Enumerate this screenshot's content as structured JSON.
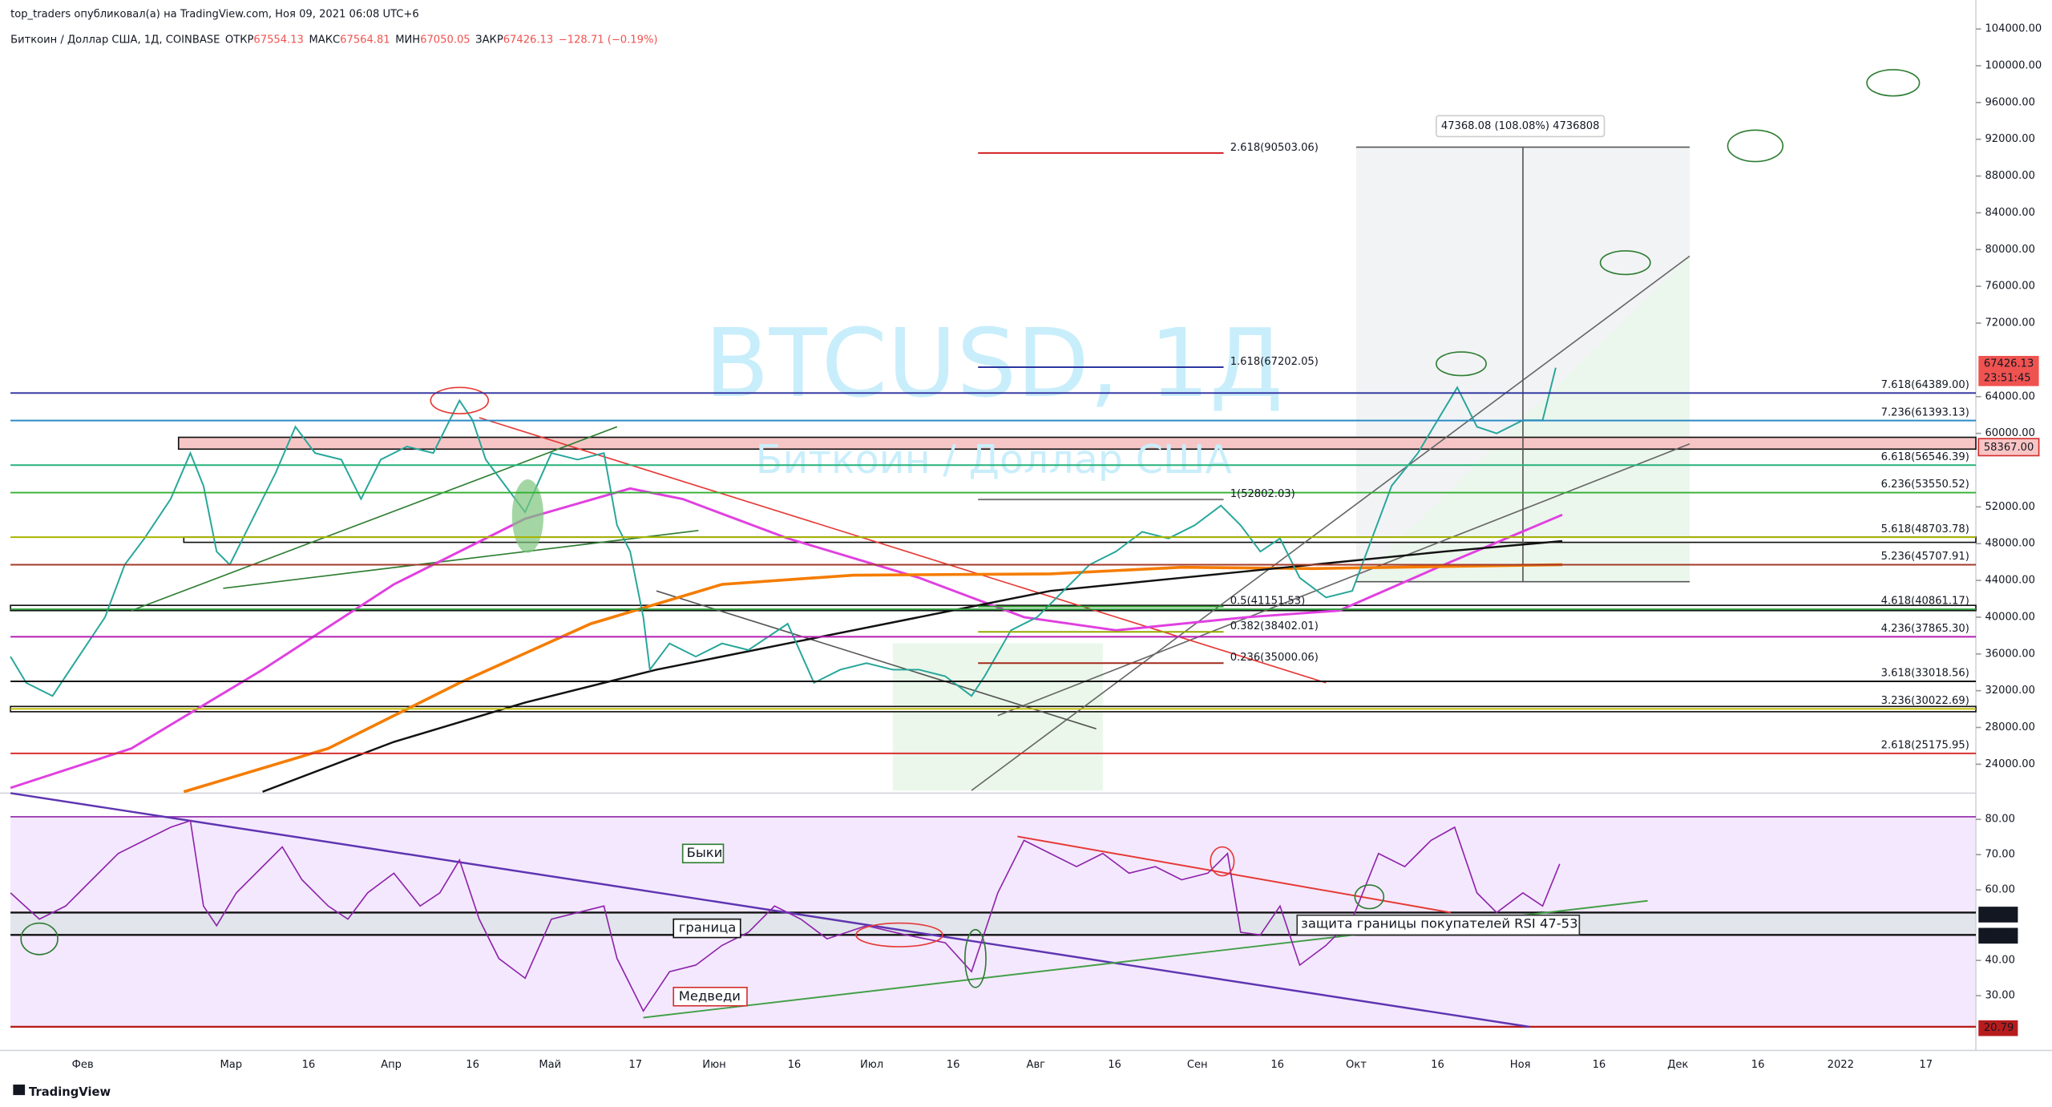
{
  "header": {
    "publisher": "top_traders опубликовал(а) на TradingView.com, Ноя 09, 2021 06:08 UTC+6",
    "symbol": "Биткоин / Доллар США, 1Д, COINBASE",
    "ohlc": [
      {
        "label": "ОТКР",
        "value": "67554.13"
      },
      {
        "label": "МАКС",
        "value": "67564.81"
      },
      {
        "label": "МИН",
        "value": "67050.05"
      },
      {
        "label": "ЗАКР",
        "value": "67426.13"
      }
    ],
    "change": "−128.71 (−0.19%)"
  },
  "watermark": {
    "ticker": "BTCUSD, 1Д",
    "name": "Биткоин / Доллар США"
  },
  "price_axis": {
    "ticks": [
      {
        "value": 104000,
        "label": "104000.00"
      },
      {
        "value": 100000,
        "label": "100000.00"
      },
      {
        "value": 96000,
        "label": "96000.00"
      },
      {
        "value": 92000,
        "label": "92000.00"
      },
      {
        "value": 88000,
        "label": "88000.00"
      },
      {
        "value": 84000,
        "label": "84000.00"
      },
      {
        "value": 80000,
        "label": "80000.00"
      },
      {
        "value": 76000,
        "label": "76000.00"
      },
      {
        "value": 72000,
        "label": "72000.00"
      },
      {
        "value": 64000,
        "label": "64000.00"
      },
      {
        "value": 60000,
        "label": "60000.00"
      },
      {
        "value": 52000,
        "label": "52000.00"
      },
      {
        "value": 48000,
        "label": "48000.00"
      },
      {
        "value": 44000,
        "label": "44000.00"
      },
      {
        "value": 40000,
        "label": "40000.00"
      },
      {
        "value": 36000,
        "label": "36000.00"
      },
      {
        "value": 32000,
        "label": "32000.00"
      },
      {
        "value": 28000,
        "label": "28000.00"
      },
      {
        "value": 24000,
        "label": "24000.00"
      }
    ]
  },
  "last_price": {
    "price": "67426.13",
    "countdown": "23:51:45"
  },
  "level_tag": "58367.00",
  "fib_right": [
    {
      "label": "7.618(64389.00)",
      "price": 64389,
      "color": "#2a2f9e"
    },
    {
      "label": "7.236(61393.13)",
      "price": 61393.13,
      "color": "#2b8bc4"
    },
    {
      "label": "6.618(56546.39)",
      "price": 56546.39,
      "color": "#26b27a"
    },
    {
      "label": "6.236(53550.52)",
      "price": 53550.52,
      "color": "#33b033"
    },
    {
      "label": "5.618(48703.78)",
      "price": 48703.78,
      "color": "#a8b400"
    },
    {
      "label": "5.236(45707.91)",
      "price": 45707.91,
      "color": "#a33a2a"
    },
    {
      "label": "4.618(40861.17)",
      "price": 40861.17,
      "color": "#2e9e3e"
    },
    {
      "label": "4.236(37865.30)",
      "price": 37865.3,
      "color": "#b51fb5"
    },
    {
      "label": "3.618(33018.56)",
      "price": 33018.56,
      "color": "#111111"
    },
    {
      "label": "3.236(30022.69)",
      "price": 30022.69,
      "color": "#c2bd00"
    },
    {
      "label": "2.618(25175.95)",
      "price": 25175.95,
      "color": "#d93030"
    }
  ],
  "fib_inner": [
    {
      "label": "2.618(90503.06)",
      "price": 90503.06,
      "color": "#d32020"
    },
    {
      "label": "1.618(67202.05)",
      "price": 67202.05,
      "color": "#1f2a9a"
    },
    {
      "label": "1(52802.03)",
      "price": 52802.03,
      "color": "#777777"
    },
    {
      "label": "0.5(41151.53)",
      "price": 41151.53,
      "color": "#33a033"
    },
    {
      "label": "0.382(38402.01)",
      "price": 38402.01,
      "color": "#9aa800"
    },
    {
      "label": "0.236(35000.06)",
      "price": 35000.06,
      "color": "#a02a1a"
    }
  ],
  "measure": "47368.08 (108.08%) 4736808",
  "rsi": {
    "ticks": [
      {
        "value": 80,
        "label": "80.00"
      },
      {
        "value": 70,
        "label": "70.00"
      },
      {
        "value": 60,
        "label": "60.00"
      },
      {
        "value": 40,
        "label": "40.00"
      },
      {
        "value": 30,
        "label": "30.00"
      }
    ],
    "tags": [
      {
        "value": 53,
        "label": "53.00",
        "color": "#131722"
      },
      {
        "value": 47,
        "label": "47.00",
        "color": "#131722"
      },
      {
        "value": 20.79,
        "label": "20.79",
        "color": "#b71c1c"
      }
    ]
  },
  "annotations": {
    "bulls": "Быки",
    "border": "граница",
    "bears": "Медведи",
    "defense": "защита границы покупателей RSI 47-53"
  },
  "time_axis": [
    "Фев",
    "Мар",
    "16",
    "Апр",
    "16",
    "Май",
    "17",
    "Июн",
    "16",
    "Июл",
    "16",
    "Авг",
    "16",
    "Сен",
    "16",
    "Окт",
    "16",
    "Ноя",
    "16",
    "Дек",
    "16",
    "2022",
    "17"
  ],
  "footer": "TradingView"
}
